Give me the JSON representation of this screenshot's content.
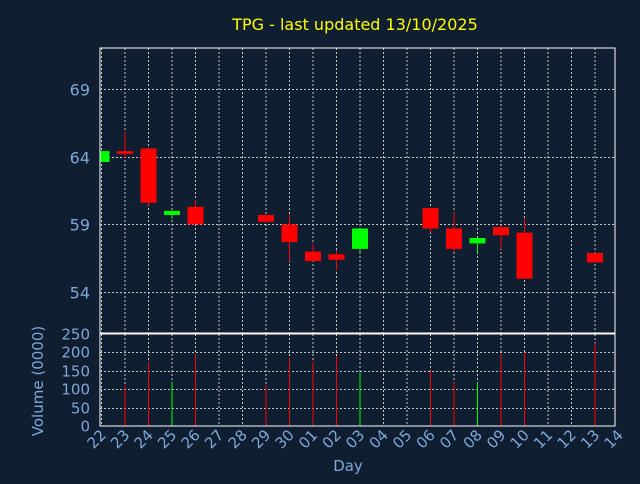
{
  "colors": {
    "background": "#0f1e30",
    "frame": "#ffffff",
    "grid": "#c8c8c8",
    "title": "#ffff00",
    "axis_text": "#7fa7d8",
    "up": "#00ff00",
    "down": "#ff0000"
  },
  "chart_data": {
    "type": "candlestick",
    "title": "TPG - last updated 13/10/2025",
    "xlabel": "Day",
    "price_axis": {
      "label": "",
      "ylim": [
        51,
        72
      ],
      "ticks": [
        54,
        59,
        64,
        69
      ]
    },
    "volume_axis": {
      "label": "Volume (0000)",
      "ylim": [
        0,
        250
      ],
      "ticks": [
        0,
        50,
        100,
        150,
        200,
        250
      ]
    },
    "x_ticks": [
      "22",
      "23",
      "24",
      "25",
      "26",
      "27",
      "28",
      "29",
      "30",
      "01",
      "02",
      "03",
      "04",
      "05",
      "06",
      "07",
      "08",
      "09",
      "10",
      "11",
      "12",
      "13",
      "14"
    ],
    "grid": true,
    "candles": [
      {
        "day": "22",
        "open": 63.6,
        "high": 64.4,
        "low": 63.6,
        "close": 64.4,
        "volume": 0
      },
      {
        "day": "23",
        "open": 64.4,
        "high": 65.8,
        "low": 63.9,
        "close": 64.2,
        "volume": 110
      },
      {
        "day": "24",
        "open": 64.6,
        "high": 64.6,
        "low": 60.4,
        "close": 60.6,
        "volume": 175
      },
      {
        "day": "25",
        "open": 59.7,
        "high": 60.0,
        "low": 59.4,
        "close": 60.0,
        "volume": 120
      },
      {
        "day": "26",
        "open": 60.3,
        "high": 60.8,
        "low": 59.1,
        "close": 59.0,
        "volume": 195
      },
      {
        "day": "29",
        "open": 59.7,
        "high": 59.7,
        "low": 59.1,
        "close": 59.2,
        "volume": 110
      },
      {
        "day": "30",
        "open": 59.0,
        "high": 59.7,
        "low": 56.3,
        "close": 57.7,
        "volume": 185
      },
      {
        "day": "01",
        "open": 57.0,
        "high": 57.6,
        "low": 56.3,
        "close": 56.3,
        "volume": 175
      },
      {
        "day": "02",
        "open": 56.8,
        "high": 57.1,
        "low": 55.6,
        "close": 56.4,
        "volume": 190
      },
      {
        "day": "03",
        "open": 57.2,
        "high": 58.7,
        "low": 57.0,
        "close": 58.7,
        "volume": 145
      },
      {
        "day": "06",
        "open": 60.2,
        "high": 60.2,
        "low": 58.4,
        "close": 58.7,
        "volume": 150
      },
      {
        "day": "07",
        "open": 58.7,
        "high": 59.9,
        "low": 57.0,
        "close": 57.2,
        "volume": 120
      },
      {
        "day": "08",
        "open": 57.6,
        "high": 58.1,
        "low": 56.9,
        "close": 58.0,
        "volume": 120
      },
      {
        "day": "09",
        "open": 58.8,
        "high": 58.9,
        "low": 57.2,
        "close": 58.2,
        "volume": 195
      },
      {
        "day": "10",
        "open": 58.4,
        "high": 59.4,
        "low": 55.0,
        "close": 55.0,
        "volume": 200
      },
      {
        "day": "13",
        "open": 56.9,
        "high": 56.9,
        "low": 56.2,
        "close": 56.2,
        "volume": 225
      }
    ]
  }
}
